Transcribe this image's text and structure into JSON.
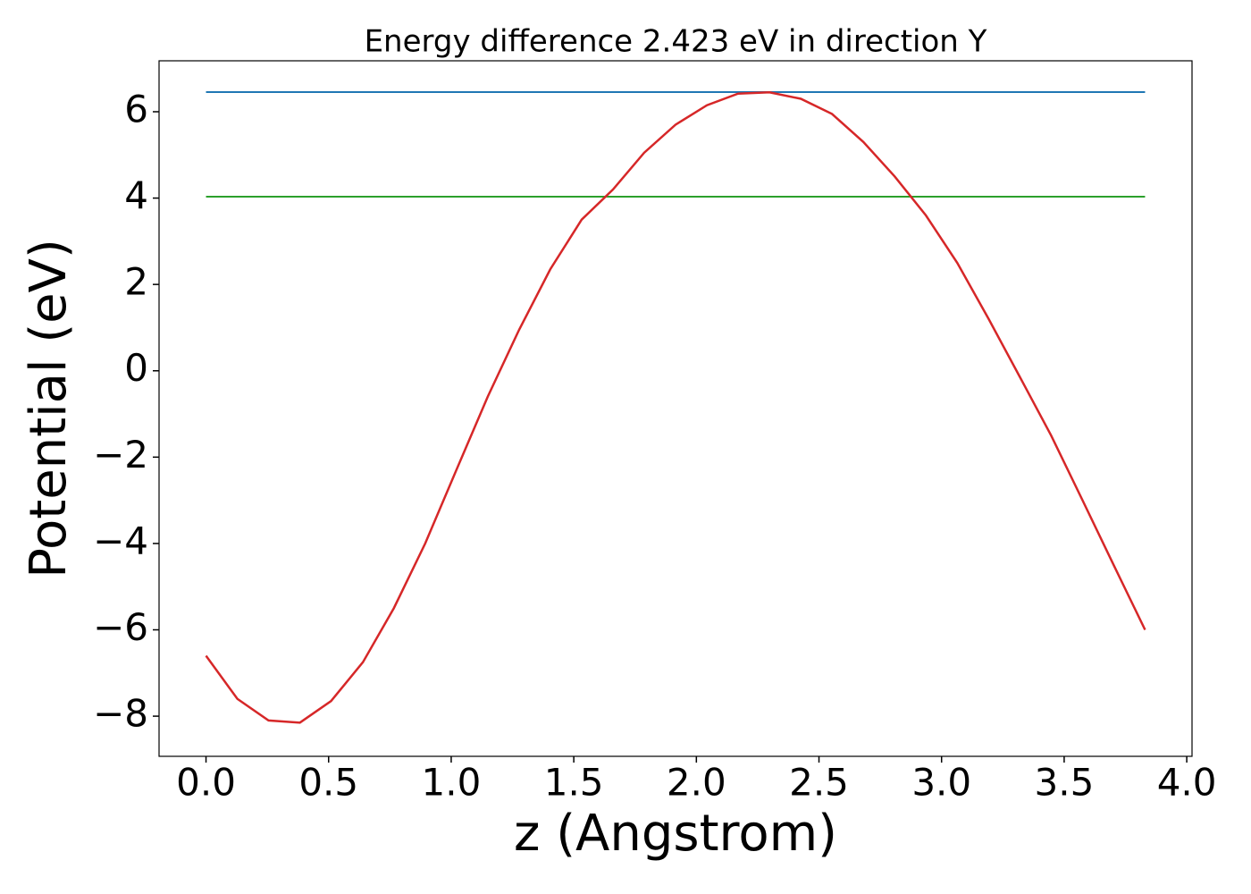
{
  "chart_data": {
    "type": "line",
    "title": "Energy difference 2.423 eV in direction Y",
    "x_label": "z (Angstrom)",
    "y_label": "Potential (eV)",
    "x": [
      0,
      0.128,
      0.255,
      0.383,
      0.51,
      0.64,
      0.766,
      0.894,
      1.021,
      1.149,
      1.277,
      1.404,
      1.532,
      1.66,
      1.787,
      1.915,
      2.043,
      2.17,
      2.298,
      2.426,
      2.553,
      2.681,
      2.809,
      2.936,
      3.064,
      3.192,
      3.32,
      3.447,
      3.575,
      3.702,
      3.83
    ],
    "series": [
      {
        "color": "#d62728",
        "values": [
          -6.6,
          -7.6,
          -8.1,
          -8.15,
          -7.65,
          -6.75,
          -5.5,
          -4.0,
          -2.3,
          -0.6,
          0.95,
          2.35,
          3.5,
          4.2,
          5.05,
          5.7,
          6.15,
          6.42,
          6.45,
          6.3,
          5.95,
          5.3,
          4.5,
          3.6,
          2.5,
          1.2,
          -0.15,
          -1.5,
          -3.0,
          -4.5,
          -6.0
        ]
      }
    ],
    "hlines": [
      {
        "color": "#1f77b4",
        "value": 6.455
      },
      {
        "color": "#2ca02c",
        "value": 4.032
      }
    ],
    "xlim": [
      -0.1915,
      4.0215
    ],
    "ylim": [
      -8.93,
      7.18
    ],
    "xticks": [
      {
        "value": 0,
        "label": "0.0"
      },
      0.5,
      {
        "value": 1,
        "label": "1.0"
      },
      1.5,
      {
        "value": 2,
        "label": "2.0"
      },
      2.5,
      {
        "value": 3,
        "label": "3.0"
      },
      3.5,
      {
        "value": 4,
        "label": "4.0"
      }
    ],
    "yticks": [
      {
        "value": -8,
        "label": "−8"
      },
      {
        "value": -6,
        "label": "−6"
      },
      {
        "value": -4,
        "label": "−4"
      },
      {
        "value": -2,
        "label": "−2"
      },
      0,
      2,
      4,
      6
    ],
    "grid": false
  }
}
